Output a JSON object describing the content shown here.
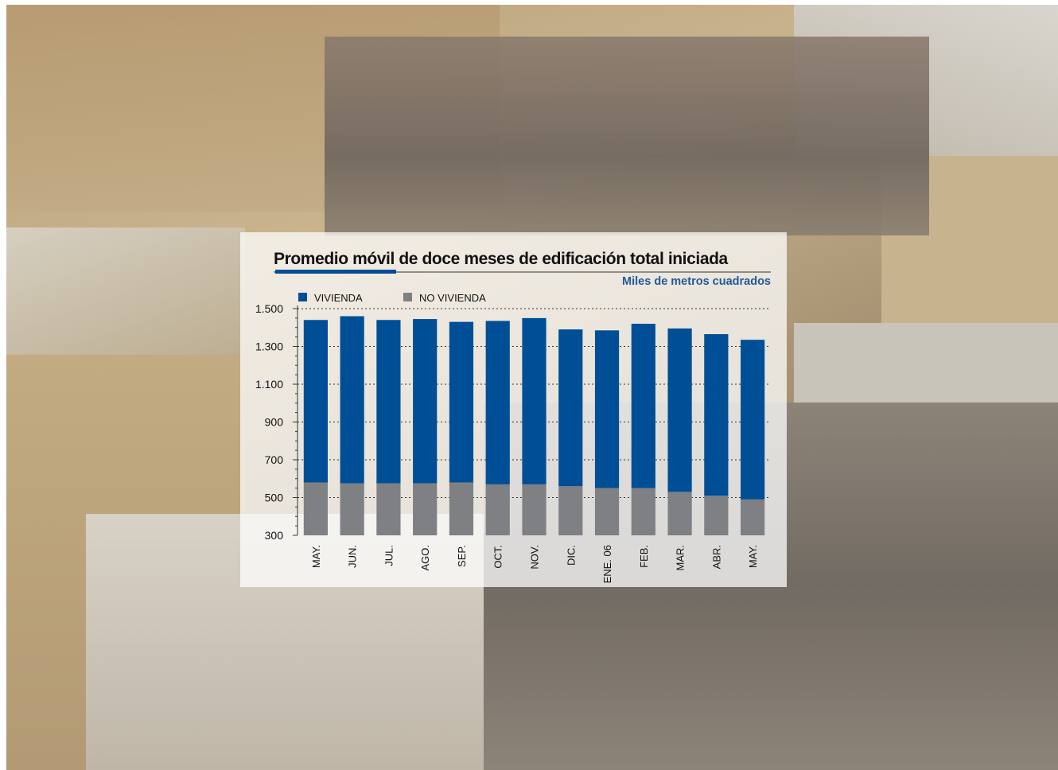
{
  "chart_data": {
    "type": "bar",
    "stacked": true,
    "title": "Promedio móvil de doce meses de edificación total iniciada",
    "subtitle": "Miles de metros cuadrados",
    "categories": [
      "MAY.",
      "JUN.",
      "JUL.",
      "AGO.",
      "SEP.",
      "OCT.",
      "NOV.",
      "DIC.",
      "ENE. 06",
      "FEB.",
      "MAR.",
      "ABR.",
      "MAY."
    ],
    "series": [
      {
        "name": "NO VIVIENDA",
        "color": "#7f8083",
        "values": [
          580,
          575,
          575,
          575,
          580,
          570,
          570,
          560,
          550,
          550,
          530,
          510,
          490
        ]
      },
      {
        "name": "VIVIENDA",
        "color": "#004f96",
        "values": [
          860,
          885,
          865,
          870,
          850,
          865,
          880,
          830,
          835,
          870,
          865,
          855,
          845
        ]
      }
    ],
    "legend": [
      "VIVIENDA",
      "NO VIVIENDA"
    ],
    "legend_position": "top-left",
    "yticks": [
      "1.500",
      "1.300",
      "1.100",
      "900",
      "700",
      "500",
      "300"
    ],
    "ylim": [
      300,
      1500
    ],
    "grid": true
  }
}
